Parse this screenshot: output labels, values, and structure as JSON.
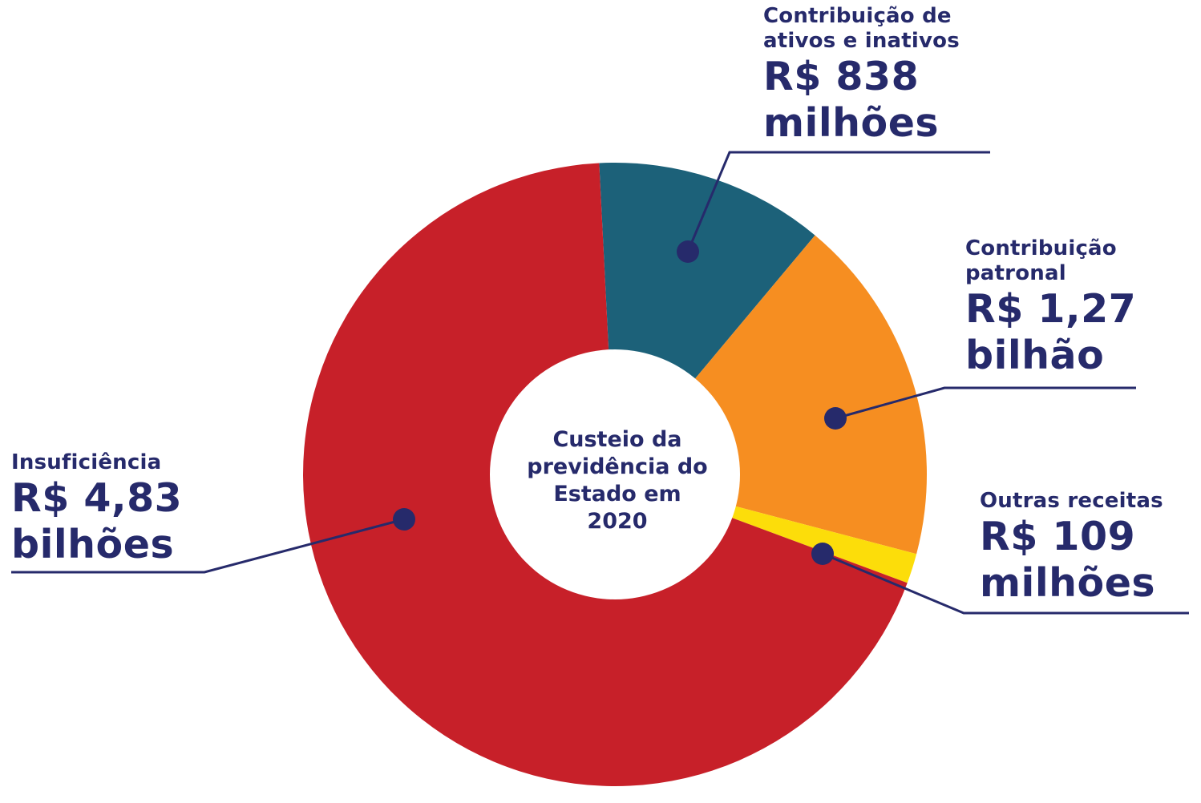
{
  "center_title_lines": [
    "Custeio da",
    "previdência do",
    "Estado em",
    "2020"
  ],
  "labels": {
    "ativos": {
      "name_lines": [
        "Contribuição de",
        "ativos e inativos"
      ],
      "amount_lines": [
        "R$ 838",
        "milhões"
      ]
    },
    "patronal": {
      "name_lines": [
        "Contribuição",
        "patronal"
      ],
      "amount_lines": [
        "R$ 1,27",
        "bilhão"
      ]
    },
    "outras": {
      "name_lines": [
        "Outras receitas"
      ],
      "amount_lines": [
        "R$ 109",
        "milhões"
      ]
    },
    "insuficiencia": {
      "name_lines": [
        "Insuficiência"
      ],
      "amount_lines": [
        "R$ 4,83",
        "bilhões"
      ]
    }
  },
  "chart_data": {
    "type": "pie",
    "style": "donut",
    "title": "Custeio da previdência do Estado em 2020",
    "unit": "R$ milhões",
    "slices": [
      {
        "label": "Contribuição de ativos e inativos",
        "value": 838,
        "display": "R$ 838 milhões",
        "color": "#1c6179"
      },
      {
        "label": "Contribuição patronal",
        "value": 1270,
        "display": "R$ 1,27 bilhão",
        "color": "#f68e21"
      },
      {
        "label": "Outras receitas",
        "value": 109,
        "display": "R$ 109 milhões",
        "color": "#fcdd0a"
      },
      {
        "label": "Insuficiência",
        "value": 4830,
        "display": "R$ 4,83 bilhões",
        "color": "#c72029"
      }
    ],
    "leader_color": "#262a6b"
  }
}
